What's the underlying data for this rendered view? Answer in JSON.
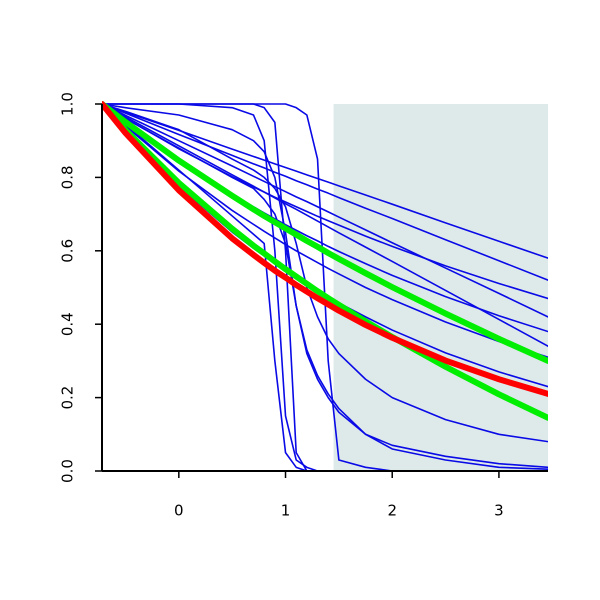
{
  "chart_data": {
    "type": "line",
    "x": [
      -0.72,
      -0.5,
      0,
      0.5,
      0.7,
      0.8,
      0.9,
      1,
      1.1,
      1.2,
      1.3,
      1.4,
      1.5,
      1.75,
      2,
      2.5,
      3,
      3.46
    ],
    "xlim": [
      -0.72,
      3.46
    ],
    "ylim": [
      0,
      1
    ],
    "xticks": [
      0,
      1,
      2,
      3
    ],
    "yticks": [
      {
        "value": 0,
        "label": "0.0"
      },
      {
        "value": 0.2,
        "label": "0.2"
      },
      {
        "value": 0.4,
        "label": "0.4"
      },
      {
        "value": 0.6,
        "label": "0.6"
      },
      {
        "value": 0.8,
        "label": "0.8"
      },
      {
        "value": 1,
        "label": "1.0"
      }
    ],
    "shaded_region": {
      "xlim": [
        1.45,
        3.46
      ],
      "color": "#deeaea"
    },
    "series": [
      {
        "color": "#0a0ae6",
        "line_width": 1.6,
        "values": [
          1,
          0.978,
          0.928,
          0.877,
          0.857,
          0.847,
          0.837,
          0.827,
          0.817,
          0.807,
          0.797,
          0.787,
          0.777,
          0.752,
          0.727,
          0.676,
          0.626,
          0.58
        ]
      },
      {
        "color": "#0a0ae6",
        "line_width": 1.6,
        "values": [
          1,
          0.975,
          0.917,
          0.86,
          0.837,
          0.826,
          0.814,
          0.803,
          0.791,
          0.78,
          0.768,
          0.757,
          0.745,
          0.716,
          0.688,
          0.63,
          0.573,
          0.52
        ]
      },
      {
        "color": "#0a0ae6",
        "line_width": 1.6,
        "values": [
          1,
          0.961,
          0.878,
          0.802,
          0.774,
          0.76,
          0.746,
          0.733,
          0.72,
          0.707,
          0.694,
          0.682,
          0.67,
          0.64,
          0.612,
          0.559,
          0.511,
          0.47
        ]
      },
      {
        "color": "#0a0ae6",
        "line_width": 1.6,
        "values": [
          1,
          0.969,
          0.9,
          0.831,
          0.803,
          0.789,
          0.775,
          0.761,
          0.747,
          0.734,
          0.72,
          0.706,
          0.692,
          0.657,
          0.622,
          0.553,
          0.484,
          0.42
        ]
      },
      {
        "color": "#0a0ae6",
        "line_width": 1.6,
        "values": [
          1,
          0.95,
          0.846,
          0.754,
          0.72,
          0.703,
          0.687,
          0.671,
          0.656,
          0.641,
          0.627,
          0.612,
          0.598,
          0.565,
          0.533,
          0.475,
          0.423,
          0.38
        ]
      },
      {
        "color": "#0a0ae6",
        "line_width": 1.6,
        "values": [
          1,
          0.965,
          0.886,
          0.807,
          0.776,
          0.76,
          0.744,
          0.728,
          0.713,
          0.697,
          0.681,
          0.665,
          0.649,
          0.61,
          0.571,
          0.492,
          0.413,
          0.34
        ]
      },
      {
        "color": "#0a0ae6",
        "line_width": 1.6,
        "values": [
          1,
          0.94,
          0.817,
          0.71,
          0.672,
          0.653,
          0.635,
          0.617,
          0.6,
          0.584,
          0.568,
          0.552,
          0.537,
          0.5,
          0.467,
          0.406,
          0.353,
          0.31
        ]
      },
      {
        "color": "#0a0ae6",
        "line_width": 1.6,
        "values": [
          1,
          0.926,
          0.776,
          0.651,
          0.607,
          0.586,
          0.566,
          0.546,
          0.527,
          0.509,
          0.492,
          0.475,
          0.458,
          0.42,
          0.384,
          0.322,
          0.27,
          0.23
        ]
      },
      {
        "color": "#0a0ae6",
        "line_width": 1.6,
        "values": [
          1,
          0.945,
          0.82,
          0.695,
          0.645,
          0.62,
          0.3,
          0.05,
          0.01,
          0,
          0,
          0,
          0,
          0,
          0,
          0,
          0,
          0
        ]
      },
      {
        "color": "#0a0ae6",
        "line_width": 1.6,
        "values": [
          1,
          1,
          1,
          0.99,
          0.97,
          0.9,
          0.6,
          0.15,
          0.03,
          0.01,
          0,
          0,
          0,
          0,
          0,
          0,
          0,
          0
        ]
      },
      {
        "color": "#0a0ae6",
        "line_width": 1.6,
        "values": [
          1,
          1,
          1,
          1,
          1,
          0.99,
          0.95,
          0.6,
          0.05,
          0,
          0,
          0,
          0,
          0,
          0,
          0,
          0,
          0
        ]
      },
      {
        "color": "#0a0ae6",
        "line_width": 1.6,
        "values": [
          1,
          1,
          1,
          1,
          1,
          1,
          1,
          1,
          0.99,
          0.97,
          0.85,
          0.3,
          0.03,
          0.01,
          0,
          0,
          0,
          0
        ]
      },
      {
        "color": "#0a0ae6",
        "line_width": 1.6,
        "values": [
          1,
          0.99,
          0.97,
          0.93,
          0.9,
          0.87,
          0.8,
          0.65,
          0.45,
          0.32,
          0.25,
          0.2,
          0.16,
          0.1,
          0.07,
          0.04,
          0.02,
          0.01
        ]
      },
      {
        "color": "#0a0ae6",
        "line_width": 1.6,
        "values": [
          1,
          0.98,
          0.93,
          0.85,
          0.82,
          0.8,
          0.77,
          0.72,
          0.62,
          0.5,
          0.42,
          0.36,
          0.32,
          0.25,
          0.2,
          0.14,
          0.1,
          0.08
        ]
      },
      {
        "color": "#0a0ae6",
        "line_width": 1.6,
        "values": [
          1,
          0.96,
          0.88,
          0.8,
          0.77,
          0.74,
          0.7,
          0.62,
          0.45,
          0.33,
          0.26,
          0.21,
          0.17,
          0.1,
          0.06,
          0.03,
          0.01,
          0.005
        ]
      },
      {
        "color": "#00ee00",
        "line_width": 6,
        "values": [
          1,
          0.951,
          0.846,
          0.75,
          0.713,
          0.695,
          0.678,
          0.661,
          0.644,
          0.627,
          0.611,
          0.594,
          0.578,
          0.539,
          0.501,
          0.429,
          0.36,
          0.3
        ]
      },
      {
        "color": "#00ee00",
        "line_width": 6,
        "values": [
          1,
          0.929,
          0.785,
          0.66,
          0.614,
          0.593,
          0.571,
          0.55,
          0.53,
          0.51,
          0.49,
          0.471,
          0.453,
          0.408,
          0.365,
          0.284,
          0.209,
          0.145
        ]
      },
      {
        "color": "#ff0000",
        "line_width": 6,
        "values": [
          1,
          0.921,
          0.765,
          0.634,
          0.589,
          0.567,
          0.546,
          0.527,
          0.507,
          0.489,
          0.471,
          0.454,
          0.437,
          0.398,
          0.363,
          0.301,
          0.25,
          0.21
        ]
      }
    ]
  }
}
